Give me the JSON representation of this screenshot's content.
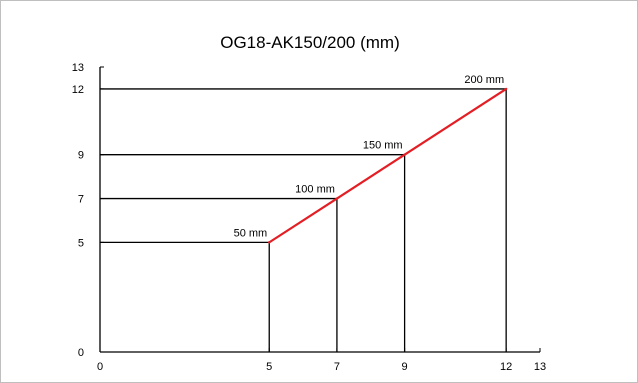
{
  "chart_data": {
    "type": "line",
    "title": "OG18-AK150/200 (mm)",
    "xlabel": "",
    "ylabel": "",
    "xlim": [
      0,
      13
    ],
    "ylim": [
      0,
      13
    ],
    "x_ticks": [
      0,
      5,
      7,
      9,
      12,
      13
    ],
    "y_ticks": [
      0,
      5,
      7,
      9,
      12,
      13
    ],
    "grid": false,
    "series": [
      {
        "points": [
          {
            "x": 5,
            "y": 5,
            "label": "50 mm"
          },
          {
            "x": 7,
            "y": 7,
            "label": "100 mm"
          },
          {
            "x": 9,
            "y": 9,
            "label": "150 mm"
          },
          {
            "x": 12,
            "y": 12,
            "label": "200 mm"
          }
        ]
      }
    ],
    "colors": {
      "line": "#e31e24",
      "axis": "#000000",
      "guides": "#000000"
    }
  }
}
